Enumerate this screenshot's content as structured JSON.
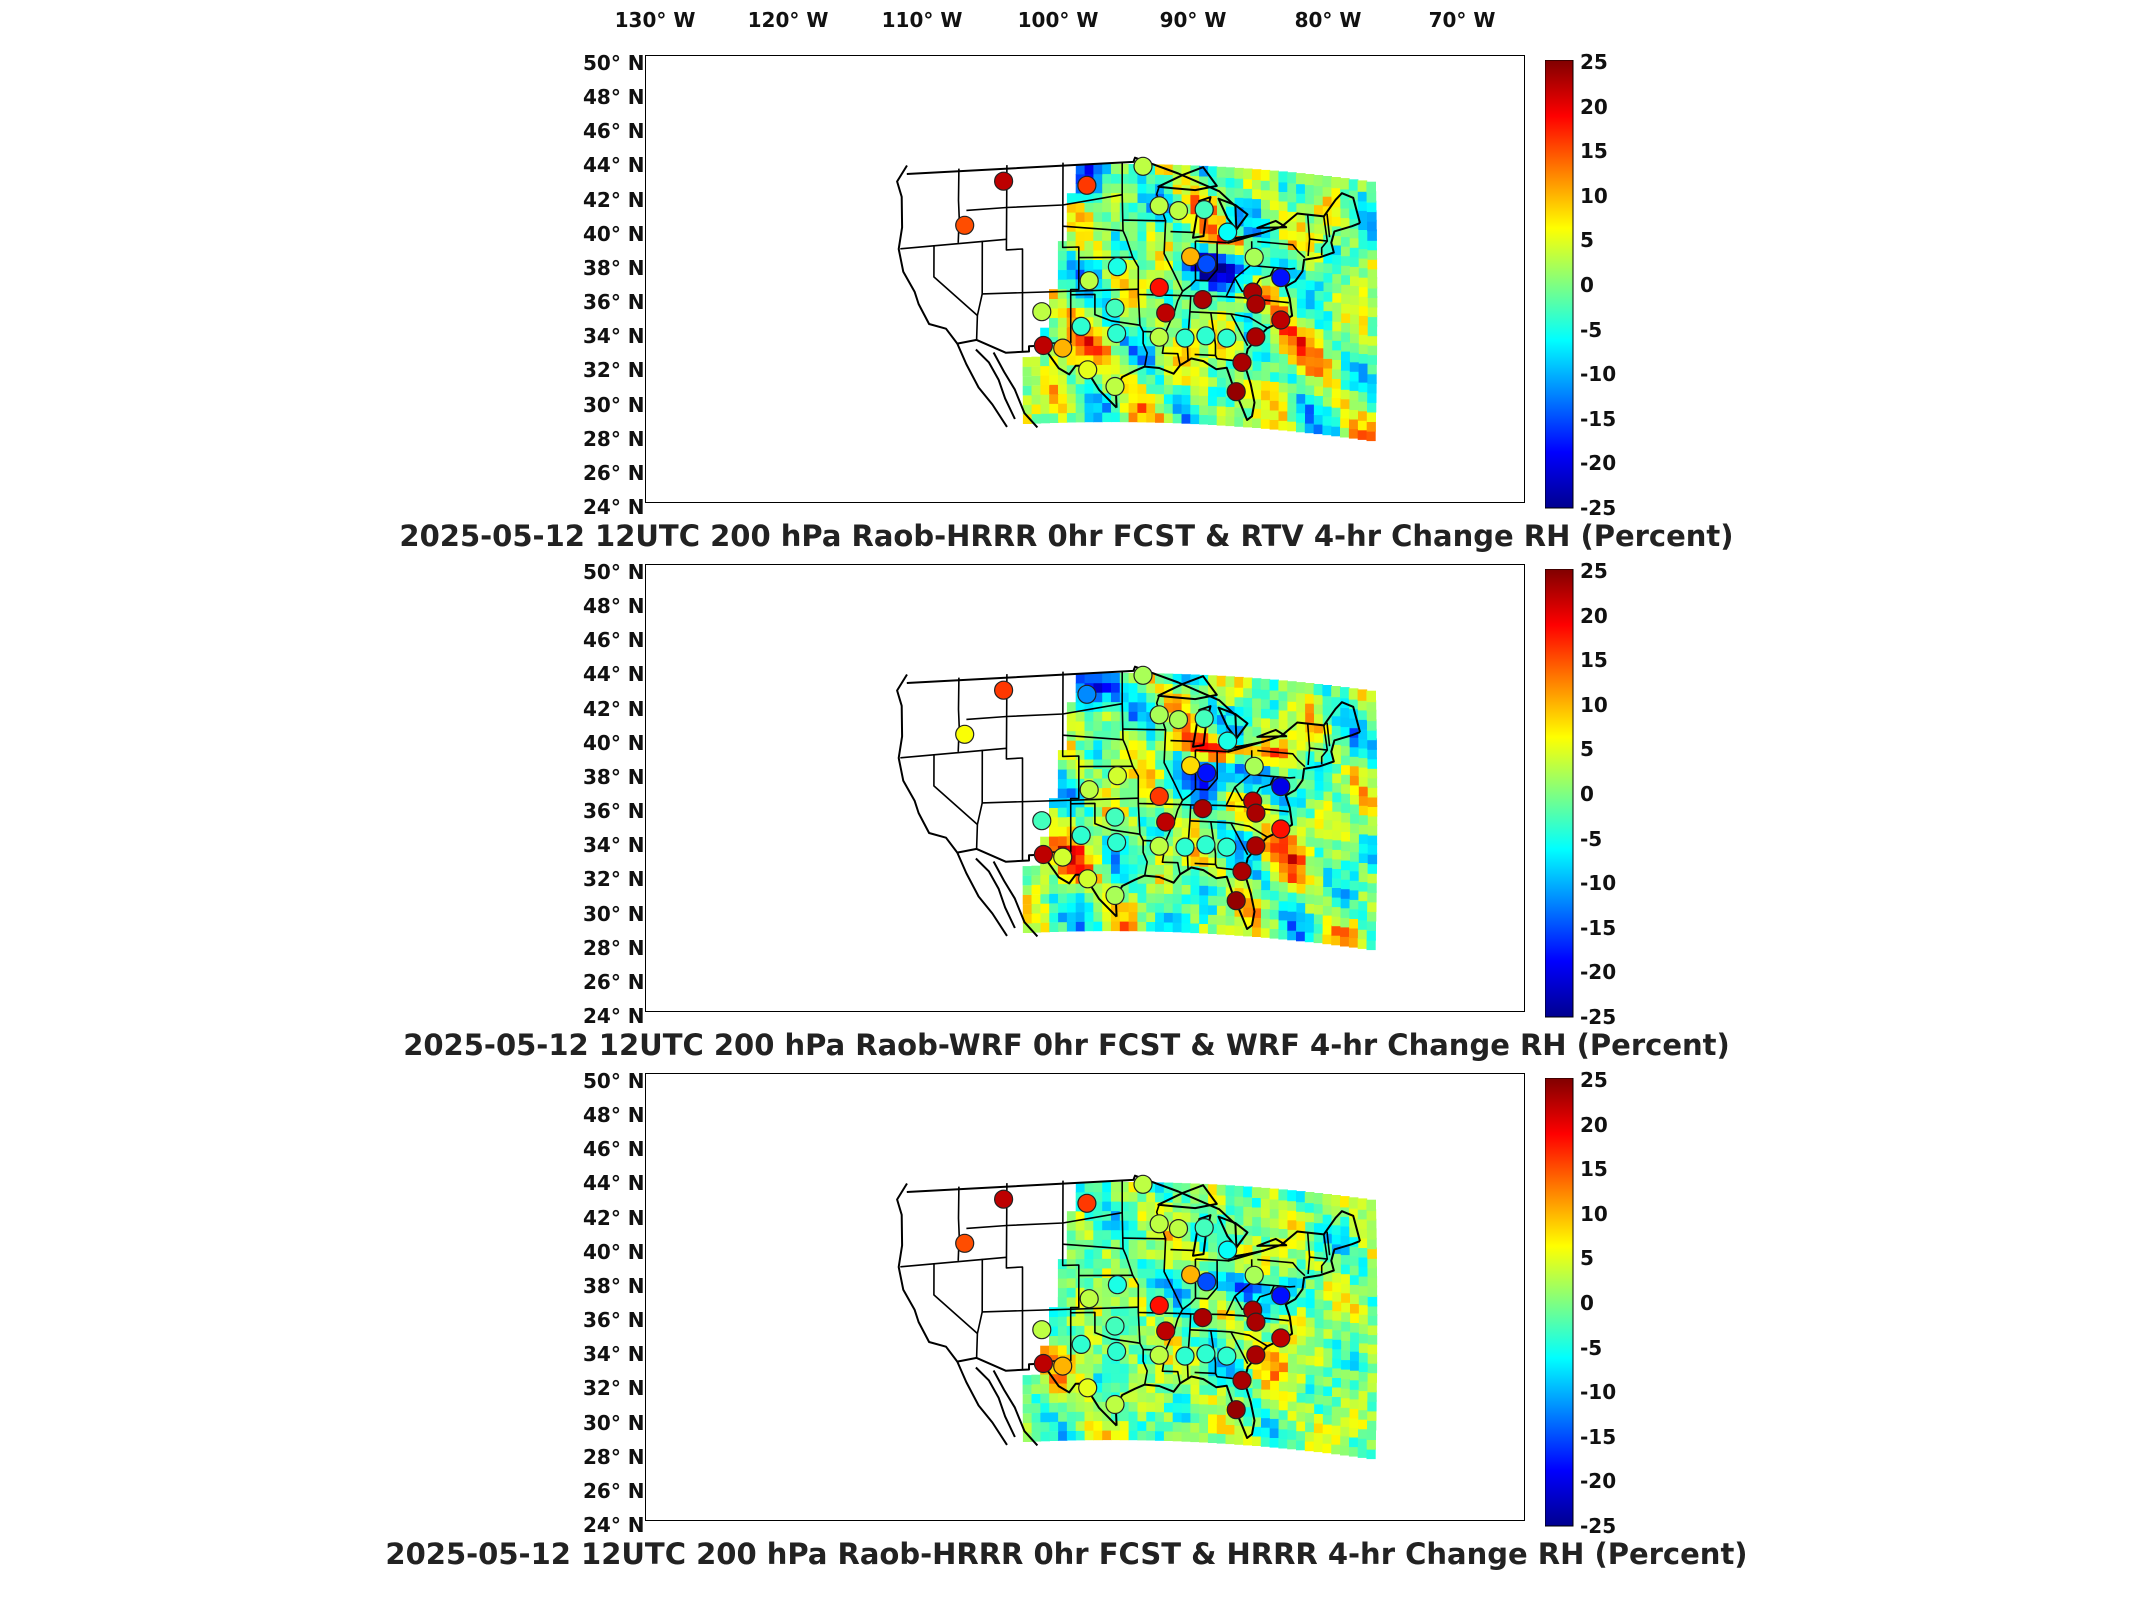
{
  "lon_axis": [
    "130° W",
    "120° W",
    "110° W",
    "100° W",
    "90° W",
    "80° W",
    "70° W"
  ],
  "lat_axis": [
    "50° N",
    "48° N",
    "46° N",
    "44° N",
    "42° N",
    "40° N",
    "38° N",
    "36° N",
    "34° N",
    "32° N",
    "30° N",
    "28° N",
    "26° N",
    "24° N"
  ],
  "colorbar": {
    "ticks": [
      "25",
      "20",
      "15",
      "10",
      "5",
      "0",
      "-5",
      "-10",
      "-15",
      "-20",
      "-25"
    ],
    "range": [
      -25,
      25
    ],
    "colors": [
      "#00008f",
      "#0000ff",
      "#0080ff",
      "#00ffff",
      "#80ff80",
      "#ffff00",
      "#ff8000",
      "#ff0000",
      "#800000"
    ]
  },
  "panels": [
    {
      "title": "2025-05-12 12UTC 200 hPa Raob-HRRR 0hr FCST & RTV 4-hr Change RH (Percent)"
    },
    {
      "title": "2025-05-12 12UTC 200 hPa Raob-WRF 0hr FCST & WRF 4-hr Change RH (Percent)"
    },
    {
      "title": "2025-05-12 12UTC 200 hPa Raob-HRRR 0hr FCST & HRRR 4-hr Change RH (Percent)"
    }
  ],
  "stations": [
    {
      "lon": -111.4,
      "lat": 47.5,
      "v": [
        22,
        16,
        22
      ]
    },
    {
      "lon": -101.0,
      "lat": 46.8,
      "v": [
        16,
        -12,
        16
      ]
    },
    {
      "lon": -94.0,
      "lat": 48.6,
      "v": [
        3,
        2,
        3
      ]
    },
    {
      "lon": -116.2,
      "lat": 43.6,
      "v": [
        15,
        6,
        15
      ]
    },
    {
      "lon": -92.0,
      "lat": 44.9,
      "v": [
        3,
        2,
        3
      ]
    },
    {
      "lon": -89.6,
      "lat": 44.5,
      "v": [
        3,
        2,
        3
      ]
    },
    {
      "lon": -86.4,
      "lat": 44.7,
      "v": [
        -3,
        -3,
        -3
      ]
    },
    {
      "lon": -83.5,
      "lat": 42.7,
      "v": [
        -6,
        -5,
        -6
      ]
    },
    {
      "lon": -80.2,
      "lat": 40.5,
      "v": [
        2,
        2,
        2
      ]
    },
    {
      "lon": -97.2,
      "lat": 39.1,
      "v": [
        -5,
        4,
        -5
      ]
    },
    {
      "lon": -88.1,
      "lat": 40.2,
      "v": [
        10,
        8,
        10
      ]
    },
    {
      "lon": -86.1,
      "lat": 39.6,
      "v": [
        -15,
        -18,
        -15
      ]
    },
    {
      "lon": -76.9,
      "lat": 38.8,
      "v": [
        -18,
        -20,
        -18
      ]
    },
    {
      "lon": -100.7,
      "lat": 37.8,
      "v": [
        3,
        3,
        3
      ]
    },
    {
      "lon": -92.0,
      "lat": 37.2,
      "v": [
        18,
        16,
        18
      ]
    },
    {
      "lon": -86.6,
      "lat": 36.2,
      "v": [
        23,
        23,
        23
      ]
    },
    {
      "lon": -80.4,
      "lat": 37.2,
      "v": [
        23,
        22,
        23
      ]
    },
    {
      "lon": -80.0,
      "lat": 36.1,
      "v": [
        23,
        23,
        23
      ]
    },
    {
      "lon": -106.6,
      "lat": 35.0,
      "v": [
        3,
        -3,
        3
      ]
    },
    {
      "lon": -97.5,
      "lat": 35.2,
      "v": [
        -3,
        -3,
        -3
      ]
    },
    {
      "lon": -91.2,
      "lat": 34.8,
      "v": [
        22,
        22,
        22
      ]
    },
    {
      "lon": -76.9,
      "lat": 34.8,
      "v": [
        22,
        18,
        22
      ]
    },
    {
      "lon": -101.7,
      "lat": 33.5,
      "v": [
        -4,
        -4,
        -4
      ]
    },
    {
      "lon": -97.3,
      "lat": 32.8,
      "v": [
        -4,
        -4,
        -4
      ]
    },
    {
      "lon": -92.0,
      "lat": 32.5,
      "v": [
        3,
        3,
        3
      ]
    },
    {
      "lon": -88.8,
      "lat": 32.5,
      "v": [
        -4,
        -4,
        -4
      ]
    },
    {
      "lon": -86.2,
      "lat": 32.8,
      "v": [
        -4,
        -4,
        -4
      ]
    },
    {
      "lon": -83.6,
      "lat": 32.7,
      "v": [
        -4,
        -4,
        -4
      ]
    },
    {
      "lon": -80.0,
      "lat": 33.0,
      "v": [
        23,
        23,
        23
      ]
    },
    {
      "lon": -106.4,
      "lat": 31.8,
      "v": [
        22,
        22,
        22
      ]
    },
    {
      "lon": -104.0,
      "lat": 31.5,
      "v": [
        10,
        4,
        10
      ]
    },
    {
      "lon": -81.7,
      "lat": 30.5,
      "v": [
        23,
        23,
        23
      ]
    },
    {
      "lon": -100.9,
      "lat": 29.4,
      "v": [
        5,
        4,
        5
      ]
    },
    {
      "lon": -97.5,
      "lat": 27.8,
      "v": [
        3,
        2,
        3
      ]
    },
    {
      "lon": -82.4,
      "lat": 27.7,
      "v": [
        24,
        24,
        24
      ]
    }
  ]
}
